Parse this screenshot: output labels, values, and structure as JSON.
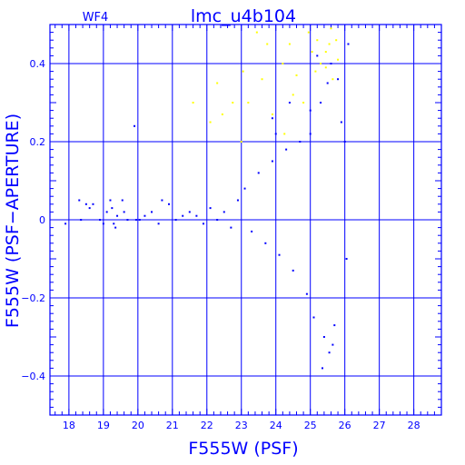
{
  "chart_data": {
    "type": "scatter",
    "title": "lmc_u4b104",
    "subtitle": "WF4",
    "xlabel": "F555W (PSF)",
    "ylabel": "F555W (PSF−APERTURE)",
    "xlim": [
      17.45,
      28.8
    ],
    "ylim": [
      -0.5,
      0.5
    ],
    "x_ticks": [
      "18",
      "19",
      "20",
      "21",
      "22",
      "23",
      "24",
      "25",
      "26",
      "27",
      "28"
    ],
    "y_ticks": [
      "0.4",
      "0.2",
      "0",
      "−0.2",
      "−0.4"
    ],
    "grid": true,
    "series": [
      {
        "color": "#0000ff",
        "points": [
          [
            17.9,
            -0.01
          ],
          [
            18.3,
            0.05
          ],
          [
            18.35,
            0.0
          ],
          [
            18.5,
            0.04
          ],
          [
            18.6,
            0.03
          ],
          [
            18.7,
            0.04
          ],
          [
            18.9,
            0.0
          ],
          [
            19.0,
            -0.01
          ],
          [
            19.1,
            0.02
          ],
          [
            19.2,
            0.05
          ],
          [
            19.25,
            0.03
          ],
          [
            19.3,
            -0.01
          ],
          [
            19.35,
            -0.02
          ],
          [
            19.4,
            0.01
          ],
          [
            19.55,
            0.05
          ],
          [
            19.6,
            0.02
          ],
          [
            19.7,
            0.0
          ],
          [
            19.9,
            0.24
          ],
          [
            19.95,
            0.0
          ],
          [
            20.05,
            0.0
          ],
          [
            20.2,
            0.01
          ],
          [
            20.4,
            0.02
          ],
          [
            20.6,
            -0.01
          ],
          [
            20.7,
            0.05
          ],
          [
            20.9,
            0.04
          ],
          [
            21.1,
            0.0
          ],
          [
            21.3,
            0.01
          ],
          [
            21.5,
            0.02
          ],
          [
            21.7,
            0.01
          ],
          [
            21.9,
            -0.01
          ],
          [
            22.1,
            0.03
          ],
          [
            22.3,
            0.0
          ],
          [
            22.5,
            0.02
          ],
          [
            22.7,
            -0.02
          ],
          [
            22.9,
            0.05
          ],
          [
            23.1,
            0.08
          ],
          [
            23.3,
            -0.03
          ],
          [
            23.5,
            0.12
          ],
          [
            23.7,
            -0.06
          ],
          [
            23.9,
            0.15
          ],
          [
            24.1,
            -0.09
          ],
          [
            24.3,
            0.18
          ],
          [
            24.5,
            -0.13
          ],
          [
            24.7,
            0.2
          ],
          [
            24.9,
            -0.19
          ],
          [
            25.0,
            0.22
          ],
          [
            25.1,
            -0.25
          ],
          [
            25.3,
            0.3
          ],
          [
            25.4,
            -0.3
          ],
          [
            25.5,
            0.35
          ],
          [
            25.55,
            -0.34
          ],
          [
            25.6,
            0.4
          ],
          [
            25.65,
            -0.32
          ],
          [
            25.8,
            0.36
          ],
          [
            25.9,
            0.25
          ],
          [
            26.0,
            0.2
          ],
          [
            26.1,
            0.45
          ],
          [
            25.35,
            -0.38
          ],
          [
            25.7,
            -0.27
          ],
          [
            26.05,
            -0.1
          ],
          [
            25.2,
            0.42
          ],
          [
            24.4,
            0.3
          ],
          [
            23.9,
            0.26
          ],
          [
            24.0,
            0.22
          ],
          [
            25.0,
            0.28
          ]
        ]
      },
      {
        "color": "#ffff00",
        "points": [
          [
            21.6,
            0.3
          ],
          [
            22.3,
            0.35
          ],
          [
            22.45,
            0.27
          ],
          [
            22.75,
            0.3
          ],
          [
            23.0,
            0.2
          ],
          [
            23.2,
            0.3
          ],
          [
            23.45,
            0.48
          ],
          [
            23.6,
            0.36
          ],
          [
            23.75,
            0.45
          ],
          [
            23.9,
            0.27
          ],
          [
            24.2,
            0.4
          ],
          [
            24.25,
            0.22
          ],
          [
            24.5,
            0.32
          ],
          [
            24.6,
            0.37
          ],
          [
            24.95,
            0.48
          ],
          [
            25.05,
            0.43
          ],
          [
            25.2,
            0.46
          ],
          [
            25.3,
            0.4
          ],
          [
            25.45,
            0.39
          ],
          [
            25.55,
            0.45
          ],
          [
            25.6,
            0.49
          ],
          [
            25.75,
            0.46
          ],
          [
            25.8,
            0.41
          ],
          [
            25.45,
            0.43
          ],
          [
            25.15,
            0.38
          ],
          [
            22.1,
            0.25
          ],
          [
            23.05,
            0.38
          ],
          [
            24.8,
            0.3
          ],
          [
            25.65,
            0.36
          ],
          [
            24.4,
            0.45
          ]
        ]
      }
    ]
  }
}
